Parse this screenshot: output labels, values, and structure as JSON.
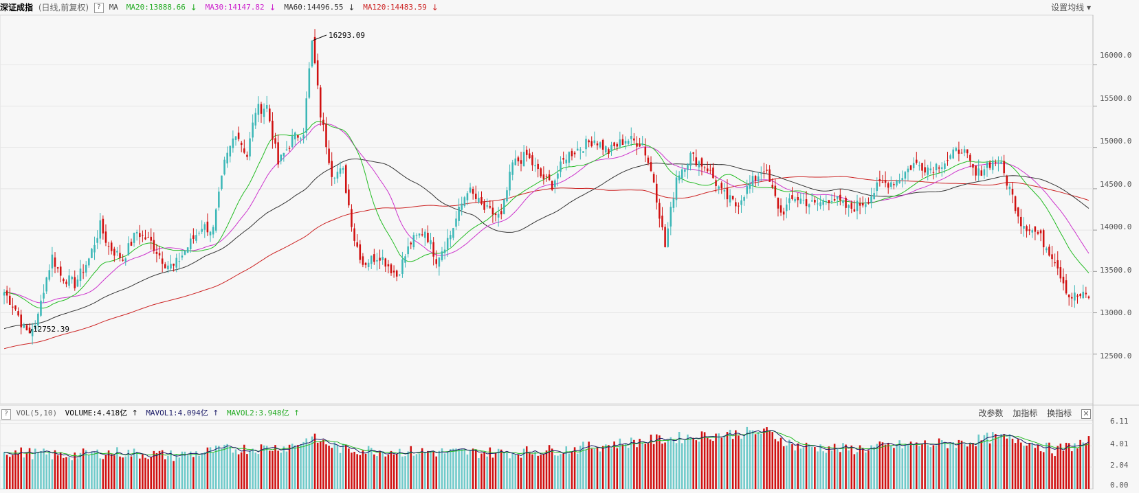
{
  "header": {
    "title": "深证成指",
    "subtitle": "(日线,前复权)",
    "help_label": "?",
    "ma_label": "MA",
    "ma_items": [
      {
        "label": "MA20:13888.66",
        "arrow": "↓",
        "color": "#22aa22"
      },
      {
        "label": "MA30:14147.82",
        "arrow": "↓",
        "color": "#cc22cc"
      },
      {
        "label": "MA60:14496.55",
        "arrow": "↓",
        "color": "#333333"
      },
      {
        "label": "MA120:14483.59",
        "arrow": "↓",
        "color": "#cc2222"
      }
    ],
    "settings_label": "设置均线 ▾"
  },
  "volume_header": {
    "help_label": "?",
    "label": "VOL(5,10)",
    "items": [
      {
        "label": "VOLUME:4.418亿",
        "arrow": "↑",
        "color": "#000000"
      },
      {
        "label": "MAVOL1:4.094亿",
        "arrow": "↑",
        "color": "#1a1a66"
      },
      {
        "label": "MAVOL2:3.948亿",
        "arrow": "↑",
        "color": "#22aa22"
      }
    ],
    "buttons": [
      "改参数",
      "加指标",
      "换指标"
    ],
    "close_label": "✕"
  },
  "annotations": {
    "high_label": "16293.09",
    "low_label": "12752.39"
  },
  "colors": {
    "up": "#3bb7b7",
    "down": "#d01010",
    "ma20": "#22bb22",
    "ma30": "#cc33cc",
    "ma60": "#333333",
    "ma120": "#cc2222",
    "vol_ma5": "#1a1a66",
    "vol_ma10": "#22bb22"
  },
  "chart_data": {
    "type": "candlestick",
    "price_axis": {
      "ticks": [
        "16000.0",
        "15500.0",
        "15000.0",
        "14500.0",
        "14000.0",
        "13500.0",
        "13000.0",
        "12500.0"
      ],
      "range": [
        11900,
        16600
      ]
    },
    "volume_axis": {
      "ticks": [
        "6.11",
        "4.01",
        "2.04",
        "0.00"
      ],
      "unit": "亿",
      "range": [
        0,
        6.4
      ]
    },
    "price_keypoints": [
      [
        0,
        13250
      ],
      [
        4,
        13050
      ],
      [
        7,
        12800
      ],
      [
        9,
        12752
      ],
      [
        12,
        12950
      ],
      [
        14,
        13300
      ],
      [
        17,
        13680
      ],
      [
        20,
        13450
      ],
      [
        25,
        13350
      ],
      [
        30,
        13650
      ],
      [
        34,
        14050
      ],
      [
        37,
        13800
      ],
      [
        42,
        13650
      ],
      [
        47,
        13980
      ],
      [
        52,
        13850
      ],
      [
        57,
        13600
      ],
      [
        60,
        13550
      ],
      [
        66,
        13850
      ],
      [
        70,
        14050
      ],
      [
        74,
        14000
      ],
      [
        78,
        14800
      ],
      [
        82,
        15200
      ],
      [
        86,
        14900
      ],
      [
        89,
        15450
      ],
      [
        93,
        15500
      ],
      [
        97,
        14800
      ],
      [
        102,
        15100
      ],
      [
        106,
        15200
      ],
      [
        109,
        16293
      ],
      [
        112,
        15400
      ],
      [
        116,
        14700
      ],
      [
        120,
        14700
      ],
      [
        124,
        13900
      ],
      [
        127,
        13600
      ],
      [
        133,
        13700
      ],
      [
        139,
        13450
      ],
      [
        144,
        13850
      ],
      [
        149,
        14000
      ],
      [
        153,
        13650
      ],
      [
        158,
        13950
      ],
      [
        164,
        14500
      ],
      [
        170,
        14250
      ],
      [
        176,
        14150
      ],
      [
        180,
        14800
      ],
      [
        185,
        14900
      ],
      [
        190,
        14650
      ],
      [
        194,
        14550
      ],
      [
        199,
        14900
      ],
      [
        204,
        15000
      ],
      [
        209,
        15100
      ],
      [
        214,
        14950
      ],
      [
        220,
        15100
      ],
      [
        226,
        15050
      ],
      [
        230,
        14600
      ],
      [
        234,
        13800
      ],
      [
        238,
        14650
      ],
      [
        243,
        14900
      ],
      [
        249,
        14750
      ],
      [
        254,
        14450
      ],
      [
        259,
        14300
      ],
      [
        264,
        14550
      ],
      [
        269,
        14750
      ],
      [
        275,
        14200
      ],
      [
        280,
        14400
      ],
      [
        287,
        14300
      ],
      [
        293,
        14400
      ],
      [
        299,
        14250
      ],
      [
        305,
        14350
      ],
      [
        310,
        14550
      ],
      [
        316,
        14600
      ],
      [
        322,
        14800
      ],
      [
        328,
        14750
      ],
      [
        334,
        14850
      ],
      [
        339,
        15000
      ],
      [
        344,
        14650
      ],
      [
        348,
        14800
      ],
      [
        352,
        14850
      ],
      [
        356,
        14500
      ],
      [
        360,
        14100
      ],
      [
        366,
        13950
      ],
      [
        372,
        13650
      ],
      [
        377,
        13200
      ],
      [
        381,
        13200
      ],
      [
        384,
        13200
      ]
    ],
    "volume_keypoints": [
      [
        0,
        3.5
      ],
      [
        20,
        3.1
      ],
      [
        40,
        3.4
      ],
      [
        60,
        3.1
      ],
      [
        80,
        3.7
      ],
      [
        100,
        3.9
      ],
      [
        109,
        4.7
      ],
      [
        120,
        3.7
      ],
      [
        140,
        3.5
      ],
      [
        160,
        3.4
      ],
      [
        180,
        3.4
      ],
      [
        200,
        3.7
      ],
      [
        220,
        4.3
      ],
      [
        240,
        4.8
      ],
      [
        260,
        5.2
      ],
      [
        270,
        5.3
      ],
      [
        280,
        4.0
      ],
      [
        300,
        3.7
      ],
      [
        320,
        4.1
      ],
      [
        340,
        4.3
      ],
      [
        350,
        4.8
      ],
      [
        360,
        4.6
      ],
      [
        372,
        3.6
      ],
      [
        384,
        4.4
      ]
    ],
    "high": {
      "index": 109,
      "value": 16293.09
    },
    "low": {
      "index": 9,
      "value": 12752.39
    },
    "ma_last": {
      "MA20": 13888.66,
      "MA30": 14147.82,
      "MA60": 14496.55,
      "MA120": 14483.59
    },
    "volume_last": {
      "VOLUME": 4.418,
      "MAVOL1": 4.094,
      "MAVOL2": 3.948
    }
  }
}
